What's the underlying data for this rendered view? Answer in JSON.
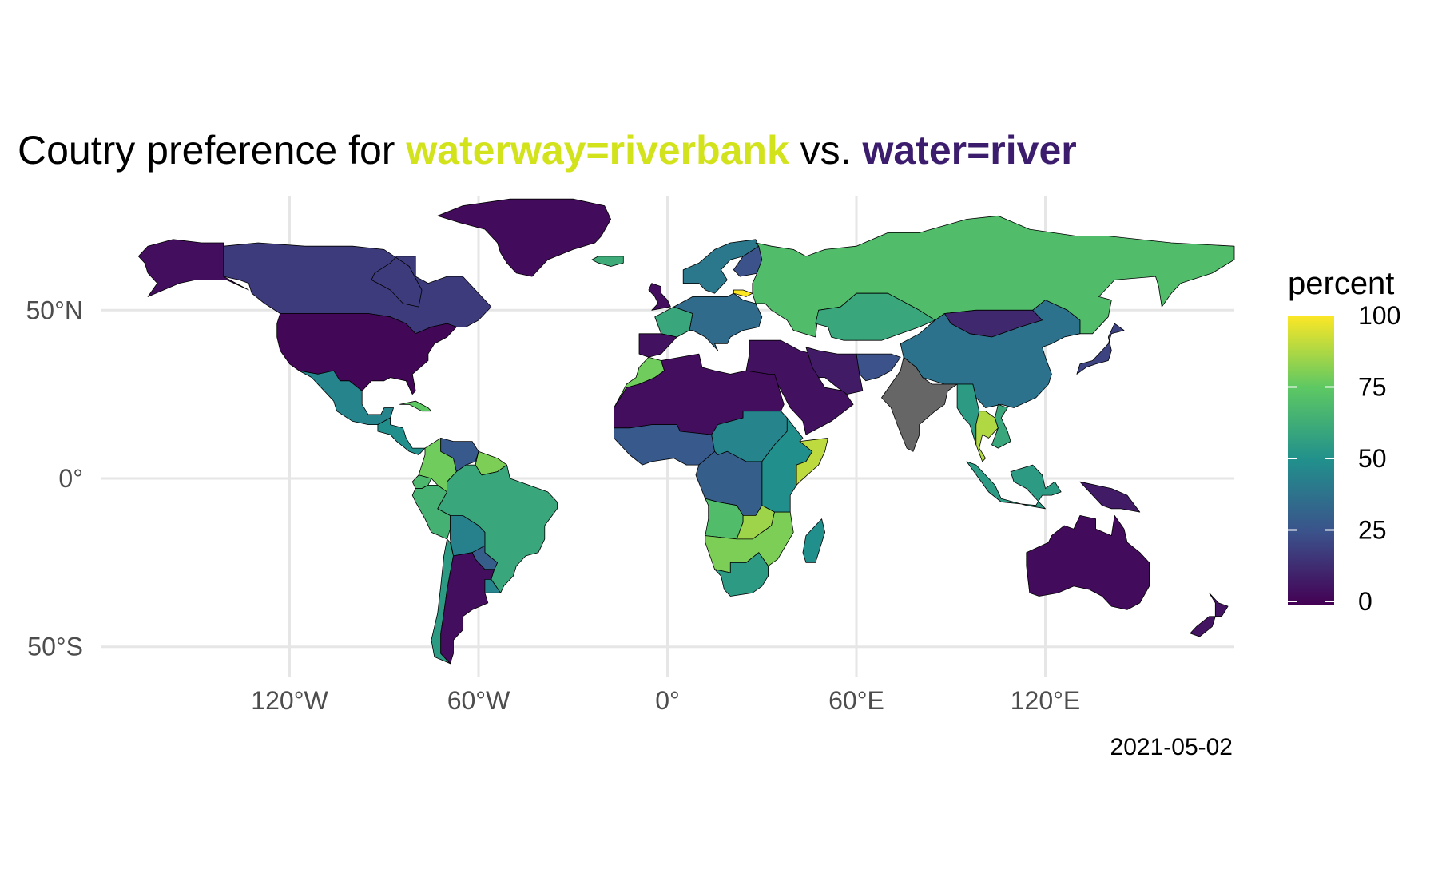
{
  "title": {
    "prefix": "Coutry preference for ",
    "highlight_1": "waterway=riverbank",
    "middle": " vs. ",
    "highlight_2": "water=river",
    "highlight_1_color": "#d2e21b",
    "highlight_2_color": "#3b1c6d"
  },
  "caption": "2021-05-02",
  "no_data_color": "#666666",
  "axes": {
    "x_ticks": [
      "120°W",
      "60°W",
      "0°",
      "60°E",
      "120°E"
    ],
    "x_values": [
      -120,
      -60,
      0,
      60,
      120
    ],
    "y_ticks": [
      "50°N",
      "0°",
      "50°S"
    ],
    "y_values": [
      50,
      0,
      -50
    ],
    "xlim": [
      -180,
      180
    ],
    "ylim": [
      -56,
      84
    ],
    "grid": true
  },
  "legend": {
    "title": "percent",
    "labels": [
      "100",
      "75",
      "50",
      "25",
      "0"
    ],
    "values": [
      100,
      75,
      50,
      25,
      0
    ],
    "range": [
      0,
      100
    ],
    "colorscale": "viridis",
    "stops": [
      "#440154",
      "#3b528b",
      "#21908c",
      "#5dc863",
      "#fde725"
    ]
  },
  "chart_data": {
    "type": "choropleth",
    "value_name": "percent",
    "regions": [
      {
        "name": "Canada",
        "value": 18
      },
      {
        "name": "United States",
        "value": 2
      },
      {
        "name": "Alaska",
        "value": 4
      },
      {
        "name": "Greenland",
        "value": 3
      },
      {
        "name": "Mexico",
        "value": 45
      },
      {
        "name": "Central America",
        "value": 50
      },
      {
        "name": "Cuba",
        "value": 75
      },
      {
        "name": "Colombia",
        "value": 78
      },
      {
        "name": "Venezuela",
        "value": 28
      },
      {
        "name": "Guyana",
        "value": 80
      },
      {
        "name": "Ecuador",
        "value": 68
      },
      {
        "name": "Peru",
        "value": 65
      },
      {
        "name": "Brazil",
        "value": 60
      },
      {
        "name": "Bolivia",
        "value": 44
      },
      {
        "name": "Paraguay",
        "value": 30
      },
      {
        "name": "Chile",
        "value": 55
      },
      {
        "name": "Argentina",
        "value": 4
      },
      {
        "name": "Uruguay",
        "value": 45
      },
      {
        "name": "Iceland",
        "value": 62
      },
      {
        "name": "United Kingdom",
        "value": 4
      },
      {
        "name": "France",
        "value": 60
      },
      {
        "name": "Iberia",
        "value": 5
      },
      {
        "name": "Scandinavia",
        "value": 40
      },
      {
        "name": "Finland",
        "value": 25
      },
      {
        "name": "Central Europe",
        "value": 35
      },
      {
        "name": "Lithuania",
        "value": 100
      },
      {
        "name": "Russia",
        "value": 70
      },
      {
        "name": "Kazakhstan",
        "value": 60
      },
      {
        "name": "Mongolia",
        "value": 12
      },
      {
        "name": "China",
        "value": 38
      },
      {
        "name": "Middle East",
        "value": 5
      },
      {
        "name": "Iran",
        "value": 8
      },
      {
        "name": "Afghanistan",
        "value": 25
      },
      {
        "name": "India",
        "value": null
      },
      {
        "name": "Myanmar",
        "value": 55
      },
      {
        "name": "Thailand",
        "value": 88
      },
      {
        "name": "Southeast Asia",
        "value": 60
      },
      {
        "name": "Indonesia",
        "value": 55
      },
      {
        "name": "Papua New Guinea",
        "value": 8
      },
      {
        "name": "Japan",
        "value": 20
      },
      {
        "name": "Australia",
        "value": 3
      },
      {
        "name": "New Zealand",
        "value": 6
      },
      {
        "name": "Morocco",
        "value": 78
      },
      {
        "name": "North Africa",
        "value": 4
      },
      {
        "name": "West Africa",
        "value": 28
      },
      {
        "name": "Sahel",
        "value": 45
      },
      {
        "name": "East Africa",
        "value": 50
      },
      {
        "name": "Somalia",
        "value": 90
      },
      {
        "name": "DR Congo",
        "value": 30
      },
      {
        "name": "Angola",
        "value": 70
      },
      {
        "name": "Zambia",
        "value": 85
      },
      {
        "name": "Southern Africa",
        "value": 80
      },
      {
        "name": "South Africa",
        "value": 55
      },
      {
        "name": "Madagascar",
        "value": 50
      }
    ]
  }
}
